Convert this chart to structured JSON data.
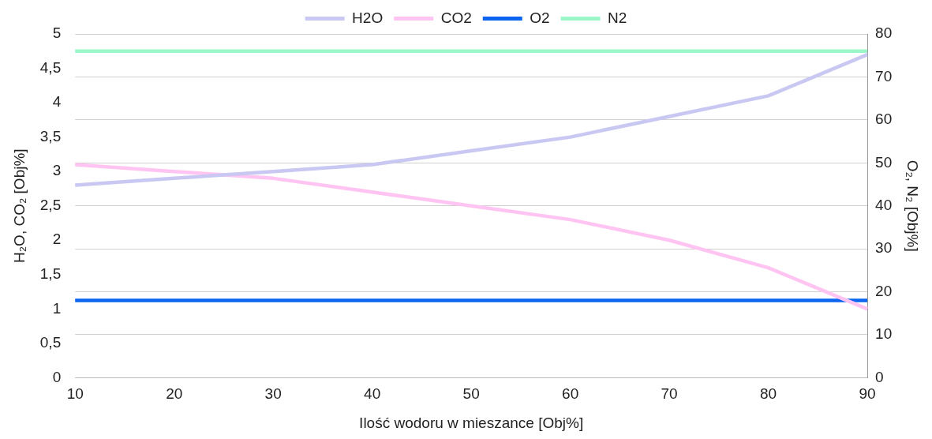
{
  "chart_data": {
    "type": "line",
    "xlabel": "Ilość wodoru w mieszance [Obj%]",
    "ylabel": "H₂O, CO₂ [Obj%]",
    "y2label": "O₂, N₂ [Obj%]",
    "categories": [
      "10",
      "20",
      "30",
      "40",
      "50",
      "60",
      "70",
      "80",
      "90"
    ],
    "series": [
      {
        "name": "H2O",
        "color": "#c8c8f2",
        "values": [
          2.8,
          2.9,
          3.0,
          3.1,
          3.3,
          3.5,
          3.8,
          4.1,
          4.7
        ]
      },
      {
        "name": "CO2",
        "color": "#ffc4f2",
        "values": [
          3.1,
          3.0,
          2.9,
          2.7,
          2.5,
          2.3,
          2.0,
          1.6,
          1.0
        ]
      },
      {
        "name": "O2",
        "color": "#0a64f0",
        "values": [
          18,
          18,
          18,
          18,
          18,
          18,
          18,
          18,
          18
        ],
        "axis": "y2"
      },
      {
        "name": "N2",
        "color": "#9cf7c8",
        "values": [
          76,
          76,
          76,
          76,
          76,
          76,
          76,
          76,
          76
        ],
        "axis": "y2"
      }
    ],
    "ylim": [
      0,
      5
    ],
    "yticks": [
      0,
      {
        "value": 0.5,
        "label": "0,5"
      },
      1,
      {
        "value": 1.5,
        "label": "1,5"
      },
      2,
      {
        "value": 2.5,
        "label": "2,5"
      },
      3,
      {
        "value": 3.5,
        "label": "3,5"
      },
      4,
      {
        "value": 4.5,
        "label": "4,5"
      },
      5
    ],
    "y2lim": [
      0,
      80
    ],
    "y2ticks": [
      0,
      10,
      20,
      30,
      40,
      50,
      60,
      70,
      80
    ],
    "grid": "y",
    "legend": "top",
    "marker": "none",
    "line_style": "solid"
  }
}
